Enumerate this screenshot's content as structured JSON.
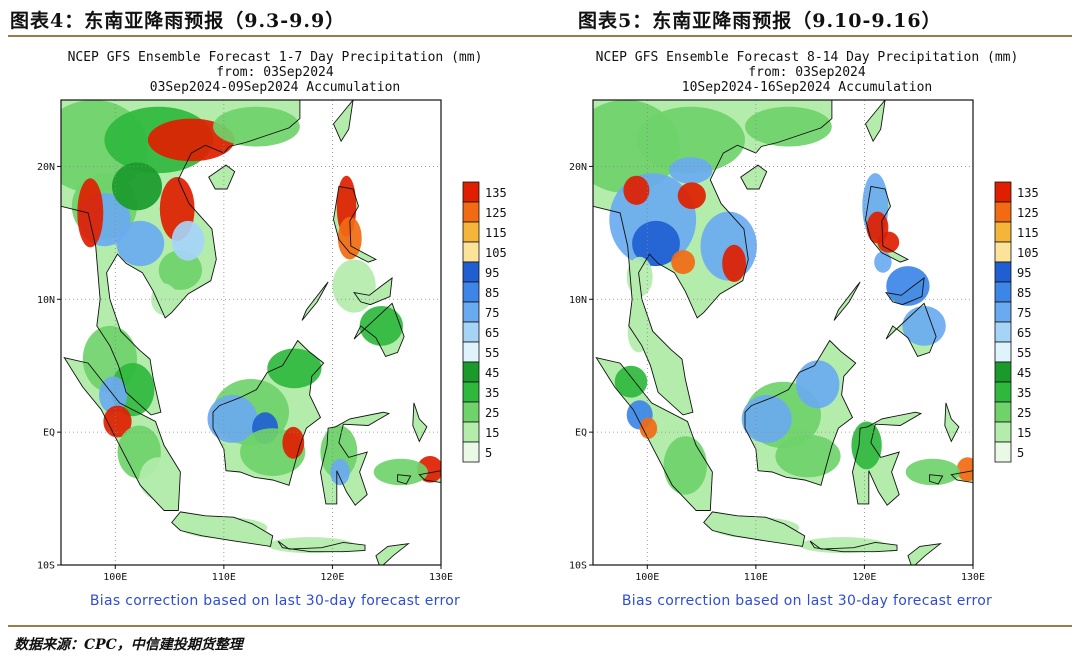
{
  "figures": [
    {
      "title": "图表4：东南亚降雨预报（9.3-9.9）",
      "header_lines": [
        "NCEP GFS Ensemble Forecast 1-7 Day Precipitation (mm)",
        "from: 03Sep2024",
        "03Sep2024-09Sep2024 Accumulation"
      ],
      "footnote": "Bias correction based on last 30-day forecast error",
      "lat_ticks": [
        "20N",
        "10N",
        "EQ",
        "10S"
      ],
      "lon_ticks": [
        "100E",
        "110E",
        "120E",
        "130E"
      ]
    },
    {
      "title": "图表5：东南亚降雨预报（9.10-9.16）",
      "header_lines": [
        "NCEP GFS Ensemble Forecast 8-14 Day Precipitation (mm)",
        "from: 03Sep2024",
        "10Sep2024-16Sep2024 Accumulation"
      ],
      "footnote": "Bias correction based on last 30-day forecast error",
      "lat_ticks": [
        "20N",
        "10N",
        "EQ",
        "10S"
      ],
      "lon_ticks": [
        "100E",
        "110E",
        "120E",
        "130E"
      ]
    }
  ],
  "legend": {
    "labels": [
      "135",
      "125",
      "115",
      "105",
      "95",
      "85",
      "75",
      "65",
      "55",
      "45",
      "35",
      "25",
      "15",
      "5"
    ],
    "colors": [
      "#e01e00",
      "#f26a12",
      "#f5b43a",
      "#fbe49a",
      "#1f5fd1",
      "#3d86e8",
      "#6aaaf0",
      "#a6d4f7",
      "#dff3fb",
      "#1a9a2a",
      "#2fb83e",
      "#6fd36a",
      "#b3ecab",
      "#eaf9e6"
    ]
  },
  "source": "数据来源：CPC，中信建投期货整理"
}
